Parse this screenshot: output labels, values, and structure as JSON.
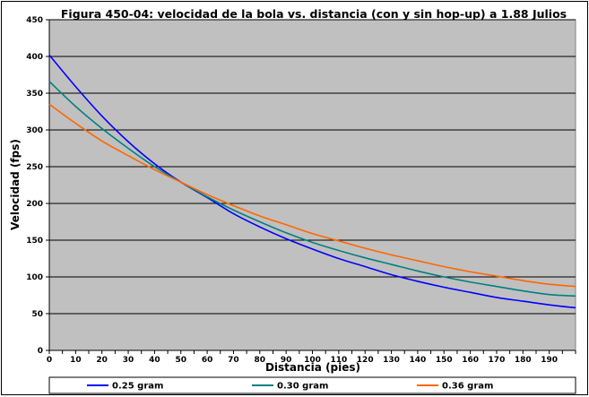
{
  "chart_data": {
    "type": "line",
    "title": "Figura 450-04: velocidad de la bola vs. distancia (con y sin hop-up) a 1.88 Julios",
    "xlabel": "Distancia (pies)",
    "ylabel": "Velocidad (fps)",
    "xlim": [
      0,
      200
    ],
    "ylim": [
      0,
      450
    ],
    "x_ticks": [
      0,
      10,
      20,
      30,
      40,
      50,
      60,
      70,
      80,
      90,
      100,
      110,
      120,
      130,
      140,
      150,
      160,
      170,
      180,
      190
    ],
    "y_ticks": [
      0,
      50,
      100,
      150,
      200,
      250,
      300,
      350,
      400,
      450
    ],
    "grid": "horizontal",
    "legend_position": "bottom",
    "plot_background": "#c0c0c0",
    "x": [
      0,
      10,
      20,
      30,
      40,
      50,
      60,
      70,
      80,
      90,
      100,
      110,
      120,
      130,
      140,
      150,
      160,
      170,
      180,
      190,
      200
    ],
    "series": [
      {
        "name": "0.25 gram",
        "color": "#0000ff",
        "values": [
          402,
          359,
          319,
          284,
          254,
          229,
          208,
          186,
          168,
          152,
          138,
          125,
          114,
          103,
          94,
          86,
          79,
          72,
          67,
          62,
          58
        ]
      },
      {
        "name": "0.30 gram",
        "color": "#008080",
        "values": [
          366,
          332,
          302,
          275,
          250,
          229,
          209,
          191,
          175,
          160,
          147,
          136,
          126,
          117,
          108,
          100,
          93,
          87,
          81,
          76,
          74
        ]
      },
      {
        "name": "0.36 gram",
        "color": "#ff6600",
        "values": [
          335,
          309,
          285,
          265,
          246,
          229,
          212,
          197,
          183,
          171,
          159,
          149,
          139,
          130,
          122,
          114,
          107,
          101,
          95,
          90,
          87
        ]
      }
    ]
  }
}
